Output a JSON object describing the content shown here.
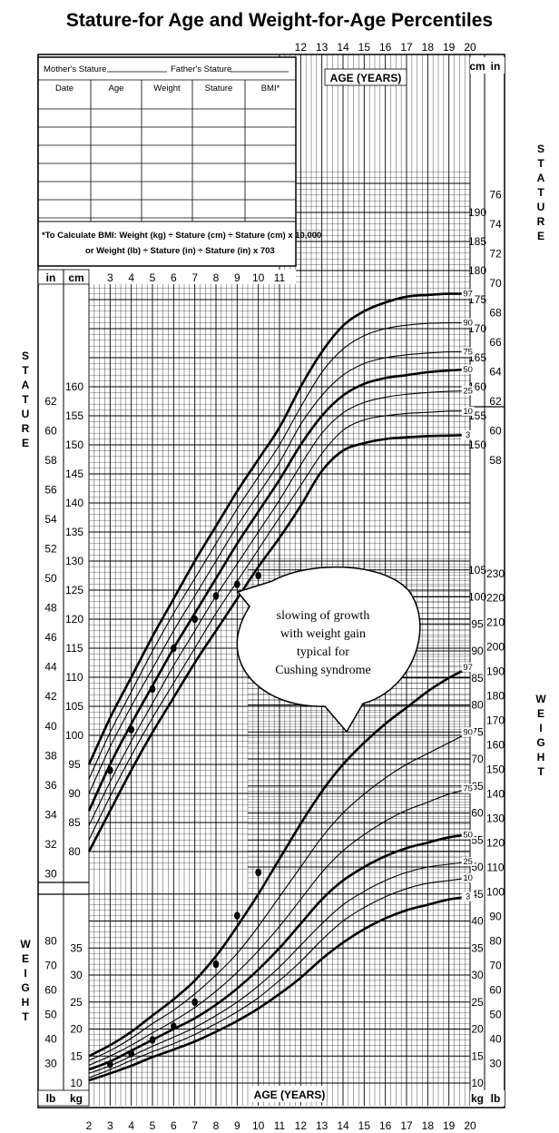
{
  "chart_data": {
    "type": "line",
    "title": "Stature-for Age and Weight-for-Age Percentiles",
    "record_table": {
      "mother_label": "Mother's Stature",
      "father_label": "Father's Stature",
      "columns": [
        "Date",
        "Age",
        "Weight",
        "Stature",
        "BMI*"
      ],
      "bmi_note_1": "*To Calculate BMI: Weight (kg) ÷ Stature (cm) ÷ Stature (cm) x 10,000",
      "bmi_note_2": "or Weight (lb) ÷ Stature (in) ÷ Stature (in) x 703"
    },
    "age_axis_label": "AGE (YEARS)",
    "age_ticks_top": [
      12,
      13,
      14,
      15,
      16,
      17,
      18,
      19,
      20
    ],
    "age_ticks_mid": [
      3,
      4,
      5,
      6,
      7,
      8,
      9,
      10,
      11
    ],
    "age_ticks_bottom": [
      2,
      3,
      4,
      5,
      6,
      7,
      8,
      9,
      10,
      11,
      12,
      13,
      14,
      15,
      16,
      17,
      18,
      19,
      20
    ],
    "stature_axis": {
      "label": "STATURE",
      "cm_unit": "cm",
      "in_unit": "in",
      "left_cm_ticks": [
        80,
        85,
        90,
        95,
        100,
        105,
        110,
        115,
        120,
        125,
        130,
        135,
        140,
        145,
        150,
        155,
        160
      ],
      "left_in_ticks": [
        30,
        32,
        34,
        36,
        38,
        40,
        42,
        44,
        46,
        48,
        50,
        52,
        54,
        56,
        58,
        60,
        62
      ],
      "right_cm_ticks": [
        150,
        155,
        160,
        165,
        170,
        175,
        180,
        185,
        190
      ],
      "right_in_ticks": [
        58,
        60,
        62,
        64,
        66,
        68,
        70,
        72,
        74,
        76
      ]
    },
    "weight_axis": {
      "label": "WEIGHT",
      "kg_unit": "kg",
      "lb_unit": "lb",
      "left_kg_ticks": [
        10,
        15,
        20,
        25,
        30,
        35
      ],
      "left_lb_ticks": [
        30,
        40,
        50,
        60,
        70,
        80
      ],
      "right_kg_ticks": [
        10,
        15,
        20,
        25,
        30,
        35,
        40,
        45,
        50,
        55,
        60,
        65,
        70,
        75,
        80,
        85,
        90,
        95,
        100,
        105
      ],
      "right_lb_ticks": [
        30,
        40,
        50,
        60,
        70,
        80,
        90,
        100,
        110,
        120,
        130,
        140,
        150,
        160,
        170,
        180,
        190,
        200,
        210,
        220,
        230
      ]
    },
    "stature_percentiles": [
      {
        "name": "97",
        "values": [
          [
            2,
            95
          ],
          [
            3,
            103
          ],
          [
            4,
            110
          ],
          [
            5,
            117
          ],
          [
            6,
            123.5
          ],
          [
            7,
            130
          ],
          [
            8,
            136
          ],
          [
            9,
            142
          ],
          [
            10,
            147.5
          ],
          [
            11,
            153
          ],
          [
            12,
            160
          ],
          [
            13,
            166
          ],
          [
            14,
            170.5
          ],
          [
            15,
            173
          ],
          [
            16,
            174.5
          ],
          [
            17,
            175.5
          ],
          [
            18,
            175.8
          ],
          [
            19,
            176
          ],
          [
            20,
            176
          ]
        ]
      },
      {
        "name": "90",
        "values": [
          [
            2,
            92.5
          ],
          [
            3,
            100.5
          ],
          [
            4,
            107.5
          ],
          [
            5,
            114.5
          ],
          [
            6,
            121
          ],
          [
            7,
            127
          ],
          [
            8,
            133
          ],
          [
            9,
            139
          ],
          [
            10,
            144.5
          ],
          [
            11,
            150
          ],
          [
            12,
            156.5
          ],
          [
            13,
            162.5
          ],
          [
            14,
            166.5
          ],
          [
            15,
            168.8
          ],
          [
            16,
            170
          ],
          [
            17,
            170.6
          ],
          [
            18,
            170.9
          ],
          [
            19,
            171
          ],
          [
            20,
            171
          ]
        ]
      },
      {
        "name": "75",
        "values": [
          [
            2,
            90
          ],
          [
            3,
            98
          ],
          [
            4,
            105
          ],
          [
            5,
            111.5
          ],
          [
            6,
            118
          ],
          [
            7,
            124
          ],
          [
            8,
            130
          ],
          [
            9,
            136
          ],
          [
            10,
            141.5
          ],
          [
            11,
            147
          ],
          [
            12,
            153.5
          ],
          [
            13,
            158.5
          ],
          [
            14,
            162
          ],
          [
            15,
            164
          ],
          [
            16,
            165
          ],
          [
            17,
            165.5
          ],
          [
            18,
            165.8
          ],
          [
            19,
            166
          ],
          [
            20,
            166
          ]
        ]
      },
      {
        "name": "50",
        "values": [
          [
            2,
            87
          ],
          [
            3,
            95
          ],
          [
            4,
            102
          ],
          [
            5,
            108.5
          ],
          [
            6,
            115
          ],
          [
            7,
            121
          ],
          [
            8,
            127
          ],
          [
            9,
            133
          ],
          [
            10,
            138.5
          ],
          [
            11,
            144
          ],
          [
            12,
            150
          ],
          [
            13,
            155
          ],
          [
            14,
            158.5
          ],
          [
            15,
            160.5
          ],
          [
            16,
            161.5
          ],
          [
            17,
            162
          ],
          [
            18,
            162.5
          ],
          [
            19,
            162.8
          ],
          [
            20,
            163
          ]
        ]
      },
      {
        "name": "25",
        "values": [
          [
            2,
            84.5
          ],
          [
            3,
            92
          ],
          [
            4,
            99
          ],
          [
            5,
            105.5
          ],
          [
            6,
            112
          ],
          [
            7,
            118
          ],
          [
            8,
            124
          ],
          [
            9,
            129.5
          ],
          [
            10,
            135
          ],
          [
            11,
            140.5
          ],
          [
            12,
            146.5
          ],
          [
            13,
            152
          ],
          [
            14,
            155.5
          ],
          [
            15,
            157.3
          ],
          [
            16,
            158.2
          ],
          [
            17,
            158.7
          ],
          [
            18,
            159
          ],
          [
            19,
            159.2
          ],
          [
            20,
            159.3
          ]
        ]
      },
      {
        "name": "10",
        "values": [
          [
            2,
            82
          ],
          [
            3,
            89.5
          ],
          [
            4,
            96.5
          ],
          [
            5,
            103
          ],
          [
            6,
            109
          ],
          [
            7,
            115
          ],
          [
            8,
            121
          ],
          [
            9,
            126.5
          ],
          [
            10,
            132
          ],
          [
            11,
            137.5
          ],
          [
            12,
            143
          ],
          [
            13,
            148.5
          ],
          [
            14,
            152.5
          ],
          [
            15,
            154.3
          ],
          [
            16,
            155
          ],
          [
            17,
            155.4
          ],
          [
            18,
            155.6
          ],
          [
            19,
            155.8
          ],
          [
            20,
            155.8
          ]
        ]
      },
      {
        "name": "3",
        "values": [
          [
            2,
            80
          ],
          [
            3,
            87
          ],
          [
            4,
            94
          ],
          [
            5,
            100.5
          ],
          [
            6,
            106.5
          ],
          [
            7,
            112.5
          ],
          [
            8,
            118
          ],
          [
            9,
            123.5
          ],
          [
            10,
            129
          ],
          [
            11,
            134
          ],
          [
            12,
            139.5
          ],
          [
            13,
            145.5
          ],
          [
            14,
            149
          ],
          [
            15,
            150.3
          ],
          [
            16,
            151
          ],
          [
            17,
            151.3
          ],
          [
            18,
            151.5
          ],
          [
            19,
            151.6
          ],
          [
            20,
            151.7
          ]
        ]
      }
    ],
    "weight_percentiles": [
      {
        "name": "97",
        "values": [
          [
            2,
            15
          ],
          [
            3,
            17
          ],
          [
            4,
            19.5
          ],
          [
            5,
            22.5
          ],
          [
            6,
            25.5
          ],
          [
            7,
            29
          ],
          [
            8,
            33.5
          ],
          [
            9,
            39
          ],
          [
            10,
            45
          ],
          [
            11,
            51.5
          ],
          [
            12,
            58
          ],
          [
            13,
            64
          ],
          [
            14,
            69
          ],
          [
            15,
            73
          ],
          [
            16,
            76.5
          ],
          [
            17,
            79.5
          ],
          [
            18,
            82.5
          ],
          [
            19,
            85
          ],
          [
            20,
            87
          ]
        ]
      },
      {
        "name": "90",
        "values": [
          [
            2,
            14.2
          ],
          [
            3,
            16
          ],
          [
            4,
            18.3
          ],
          [
            5,
            21
          ],
          [
            6,
            23.5
          ],
          [
            7,
            26.5
          ],
          [
            8,
            30
          ],
          [
            9,
            34
          ],
          [
            10,
            39
          ],
          [
            11,
            44.5
          ],
          [
            12,
            50
          ],
          [
            13,
            55.5
          ],
          [
            14,
            60
          ],
          [
            15,
            63.5
          ],
          [
            16,
            66.5
          ],
          [
            17,
            69
          ],
          [
            18,
            71
          ],
          [
            19,
            73
          ],
          [
            20,
            75
          ]
        ]
      },
      {
        "name": "75",
        "values": [
          [
            2,
            13.3
          ],
          [
            3,
            15
          ],
          [
            4,
            17
          ],
          [
            5,
            19.3
          ],
          [
            6,
            21.5
          ],
          [
            7,
            24
          ],
          [
            8,
            27
          ],
          [
            9,
            30.5
          ],
          [
            10,
            34.5
          ],
          [
            11,
            39
          ],
          [
            12,
            44
          ],
          [
            13,
            49
          ],
          [
            14,
            53
          ],
          [
            15,
            56
          ],
          [
            16,
            58.5
          ],
          [
            17,
            60.5
          ],
          [
            18,
            62
          ],
          [
            19,
            63.5
          ],
          [
            20,
            64.5
          ]
        ]
      },
      {
        "name": "50",
        "values": [
          [
            2,
            12.5
          ],
          [
            3,
            14
          ],
          [
            4,
            16
          ],
          [
            5,
            18
          ],
          [
            6,
            20
          ],
          [
            7,
            22
          ],
          [
            8,
            24.5
          ],
          [
            9,
            27.5
          ],
          [
            10,
            31
          ],
          [
            11,
            35
          ],
          [
            12,
            39.5
          ],
          [
            13,
            44
          ],
          [
            14,
            47.5
          ],
          [
            15,
            50
          ],
          [
            16,
            52
          ],
          [
            17,
            53.5
          ],
          [
            18,
            54.5
          ],
          [
            19,
            55.5
          ],
          [
            20,
            56
          ]
        ]
      },
      {
        "name": "25",
        "values": [
          [
            2,
            11.8
          ],
          [
            3,
            13.2
          ],
          [
            4,
            15
          ],
          [
            5,
            16.8
          ],
          [
            6,
            18.5
          ],
          [
            7,
            20.3
          ],
          [
            8,
            22.5
          ],
          [
            9,
            25
          ],
          [
            10,
            28
          ],
          [
            11,
            31.5
          ],
          [
            12,
            35.5
          ],
          [
            13,
            39.5
          ],
          [
            14,
            43
          ],
          [
            15,
            45.5
          ],
          [
            16,
            47.5
          ],
          [
            17,
            49
          ],
          [
            18,
            50
          ],
          [
            19,
            50.5
          ],
          [
            20,
            51
          ]
        ]
      },
      {
        "name": "10",
        "values": [
          [
            2,
            11
          ],
          [
            3,
            12.5
          ],
          [
            4,
            14.2
          ],
          [
            5,
            15.8
          ],
          [
            6,
            17.3
          ],
          [
            7,
            19
          ],
          [
            8,
            21
          ],
          [
            9,
            23.2
          ],
          [
            10,
            25.8
          ],
          [
            11,
            29
          ],
          [
            12,
            32.5
          ],
          [
            13,
            36.5
          ],
          [
            14,
            40
          ],
          [
            15,
            42.5
          ],
          [
            16,
            44.5
          ],
          [
            17,
            46
          ],
          [
            18,
            47
          ],
          [
            19,
            47.5
          ],
          [
            20,
            48
          ]
        ]
      },
      {
        "name": "3",
        "values": [
          [
            2,
            10.5
          ],
          [
            3,
            11.8
          ],
          [
            4,
            13.2
          ],
          [
            5,
            14.8
          ],
          [
            6,
            16.2
          ],
          [
            7,
            17.7
          ],
          [
            8,
            19.5
          ],
          [
            9,
            21.5
          ],
          [
            10,
            23.8
          ],
          [
            11,
            26.5
          ],
          [
            12,
            29.5
          ],
          [
            13,
            33
          ],
          [
            14,
            36
          ],
          [
            15,
            38.5
          ],
          [
            16,
            40.5
          ],
          [
            17,
            42
          ],
          [
            18,
            43
          ],
          [
            19,
            44
          ],
          [
            20,
            44.5
          ]
        ]
      }
    ],
    "patient_stature": [
      [
        3,
        94
      ],
      [
        4,
        101
      ],
      [
        5,
        108
      ],
      [
        6,
        115
      ],
      [
        7,
        120
      ],
      [
        8,
        124
      ],
      [
        9,
        126
      ],
      [
        10,
        127.5
      ]
    ],
    "patient_weight": [
      [
        3,
        13.5
      ],
      [
        4,
        15.5
      ],
      [
        5,
        18
      ],
      [
        6,
        20.5
      ],
      [
        7,
        25
      ],
      [
        8,
        32
      ],
      [
        9,
        41
      ],
      [
        10,
        49
      ]
    ],
    "annotation": [
      "slowing of growth",
      "with weight gain",
      "typical for",
      "Cushing syndrome"
    ]
  }
}
